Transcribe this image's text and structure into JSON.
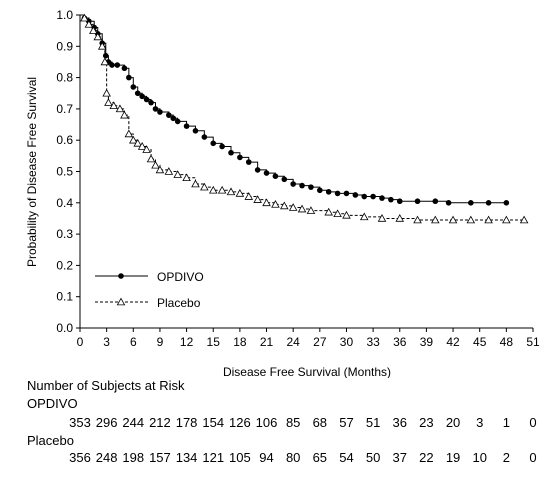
{
  "chart_data": {
    "type": "line",
    "title": "",
    "xlabel": "Disease Free Survival (Months)",
    "ylabel": "Probability of Disease Free Survival",
    "xlim": [
      0,
      51
    ],
    "ylim": [
      0.0,
      1.0
    ],
    "x_ticks": [
      0,
      3,
      6,
      9,
      12,
      15,
      18,
      21,
      24,
      27,
      30,
      33,
      36,
      39,
      42,
      45,
      48,
      51
    ],
    "y_ticks": [
      "0.0",
      "0.1",
      "0.2",
      "0.3",
      "0.4",
      "0.5",
      "0.6",
      "0.7",
      "0.8",
      "0.9",
      "1.0"
    ],
    "legend_position": "bottom-left",
    "series": [
      {
        "name": "OPDIVO",
        "marker": "filled-circle",
        "line_style": "solid",
        "color": "#000000",
        "points": [
          [
            0,
            1.0
          ],
          [
            0.5,
            0.99
          ],
          [
            1,
            0.98
          ],
          [
            1.6,
            0.96
          ],
          [
            2,
            0.94
          ],
          [
            2.5,
            0.91
          ],
          [
            2.9,
            0.87
          ],
          [
            3.2,
            0.85
          ],
          [
            3.6,
            0.84
          ],
          [
            4.2,
            0.84
          ],
          [
            5,
            0.83
          ],
          [
            5.5,
            0.8
          ],
          [
            6,
            0.77
          ],
          [
            6.5,
            0.75
          ],
          [
            7,
            0.74
          ],
          [
            7.5,
            0.73
          ],
          [
            8,
            0.72
          ],
          [
            8.5,
            0.7
          ],
          [
            9,
            0.69
          ],
          [
            10,
            0.68
          ],
          [
            10.5,
            0.67
          ],
          [
            11,
            0.66
          ],
          [
            12,
            0.645
          ],
          [
            13,
            0.63
          ],
          [
            14,
            0.61
          ],
          [
            15,
            0.59
          ],
          [
            16,
            0.58
          ],
          [
            17,
            0.56
          ],
          [
            18,
            0.545
          ],
          [
            19,
            0.53
          ],
          [
            20,
            0.505
          ],
          [
            21,
            0.495
          ],
          [
            22,
            0.485
          ],
          [
            23,
            0.475
          ],
          [
            24,
            0.46
          ],
          [
            25,
            0.455
          ],
          [
            26,
            0.45
          ],
          [
            27,
            0.44
          ],
          [
            28,
            0.435
          ],
          [
            29,
            0.43
          ],
          [
            30,
            0.43
          ],
          [
            31,
            0.425
          ],
          [
            32,
            0.42
          ],
          [
            33,
            0.42
          ],
          [
            34,
            0.415
          ],
          [
            35,
            0.41
          ],
          [
            36,
            0.405
          ],
          [
            38,
            0.405
          ],
          [
            40,
            0.405
          ],
          [
            41.5,
            0.4
          ],
          [
            44,
            0.4
          ],
          [
            46,
            0.4
          ],
          [
            48,
            0.4
          ]
        ]
      },
      {
        "name": "Placebo",
        "marker": "open-triangle",
        "line_style": "dashed",
        "color": "#000000",
        "points": [
          [
            0,
            1.0
          ],
          [
            0.5,
            0.99
          ],
          [
            1,
            0.97
          ],
          [
            1.5,
            0.95
          ],
          [
            2,
            0.93
          ],
          [
            2.5,
            0.9
          ],
          [
            2.8,
            0.85
          ],
          [
            3,
            0.75
          ],
          [
            3.2,
            0.72
          ],
          [
            3.8,
            0.71
          ],
          [
            4.5,
            0.7
          ],
          [
            5,
            0.68
          ],
          [
            5.5,
            0.62
          ],
          [
            6,
            0.6
          ],
          [
            6.5,
            0.59
          ],
          [
            7,
            0.58
          ],
          [
            7.5,
            0.57
          ],
          [
            8,
            0.54
          ],
          [
            8.5,
            0.52
          ],
          [
            9,
            0.505
          ],
          [
            10,
            0.5
          ],
          [
            11,
            0.49
          ],
          [
            12,
            0.48
          ],
          [
            13,
            0.46
          ],
          [
            14,
            0.45
          ],
          [
            15,
            0.44
          ],
          [
            16,
            0.44
          ],
          [
            17,
            0.435
          ],
          [
            18,
            0.43
          ],
          [
            19,
            0.42
          ],
          [
            20,
            0.41
          ],
          [
            21,
            0.4
          ],
          [
            22,
            0.395
          ],
          [
            23,
            0.39
          ],
          [
            24,
            0.385
          ],
          [
            25,
            0.38
          ],
          [
            26,
            0.375
          ],
          [
            28,
            0.37
          ],
          [
            29,
            0.365
          ],
          [
            30,
            0.36
          ],
          [
            32,
            0.355
          ],
          [
            34,
            0.35
          ],
          [
            36,
            0.35
          ],
          [
            38,
            0.345
          ],
          [
            40,
            0.345
          ],
          [
            42,
            0.345
          ],
          [
            44,
            0.345
          ],
          [
            46,
            0.345
          ],
          [
            48,
            0.345
          ],
          [
            50,
            0.345
          ]
        ]
      }
    ]
  },
  "risk_table": {
    "title": "Number of Subjects at Risk",
    "rows": [
      {
        "label": "OPDIVO",
        "values": [
          "353",
          "296",
          "244",
          "212",
          "178",
          "154",
          "126",
          "106",
          "85",
          "68",
          "57",
          "51",
          "36",
          "23",
          "20",
          "3",
          "1",
          "0"
        ]
      },
      {
        "label": "Placebo",
        "values": [
          "356",
          "248",
          "198",
          "157",
          "134",
          "121",
          "105",
          "94",
          "80",
          "65",
          "54",
          "50",
          "37",
          "22",
          "19",
          "10",
          "2",
          "0"
        ]
      }
    ]
  }
}
